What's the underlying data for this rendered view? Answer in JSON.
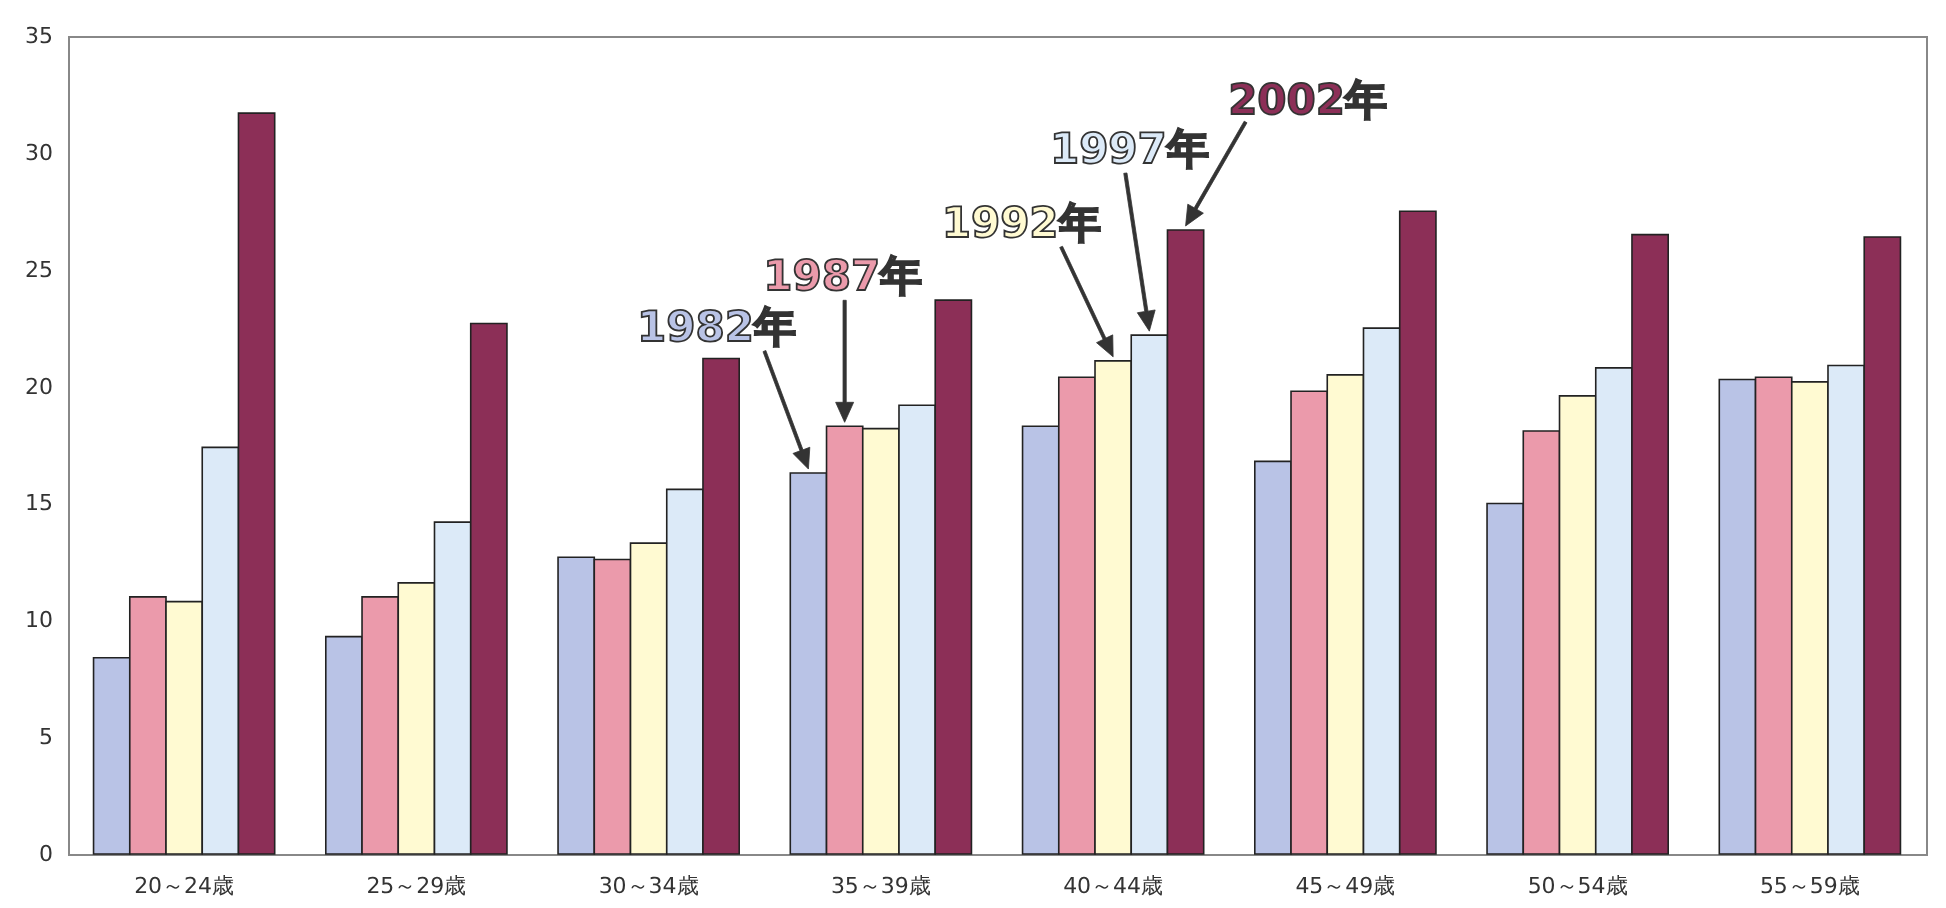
{
  "chart_data": {
    "type": "bar",
    "categories": [
      "20～24歳",
      "25～29歳",
      "30～34歳",
      "35～39歳",
      "40～44歳",
      "45～49歳",
      "50～54歳",
      "55～59歳"
    ],
    "series": [
      {
        "name": "1982年",
        "color": "#b9c3e6",
        "values": [
          8.4,
          9.3,
          12.7,
          16.3,
          18.3,
          16.8,
          15.0,
          20.3
        ]
      },
      {
        "name": "1987年",
        "color": "#eb9aab",
        "values": [
          11.0,
          11.0,
          12.6,
          18.3,
          20.4,
          19.8,
          18.1,
          20.4
        ]
      },
      {
        "name": "1992年",
        "color": "#fffad2",
        "values": [
          10.8,
          11.6,
          13.3,
          18.2,
          21.1,
          20.5,
          19.6,
          20.2
        ]
      },
      {
        "name": "1997年",
        "color": "#dceaf8",
        "values": [
          17.4,
          14.2,
          15.6,
          19.2,
          22.2,
          22.5,
          20.8,
          20.9
        ]
      },
      {
        "name": "2002年",
        "color": "#8c2f57",
        "values": [
          31.7,
          22.7,
          21.2,
          23.7,
          26.7,
          27.5,
          26.5,
          26.4
        ]
      }
    ],
    "ylim": [
      0,
      35
    ],
    "yticks": [
      0,
      5,
      10,
      15,
      20,
      25,
      30,
      35
    ]
  }
}
